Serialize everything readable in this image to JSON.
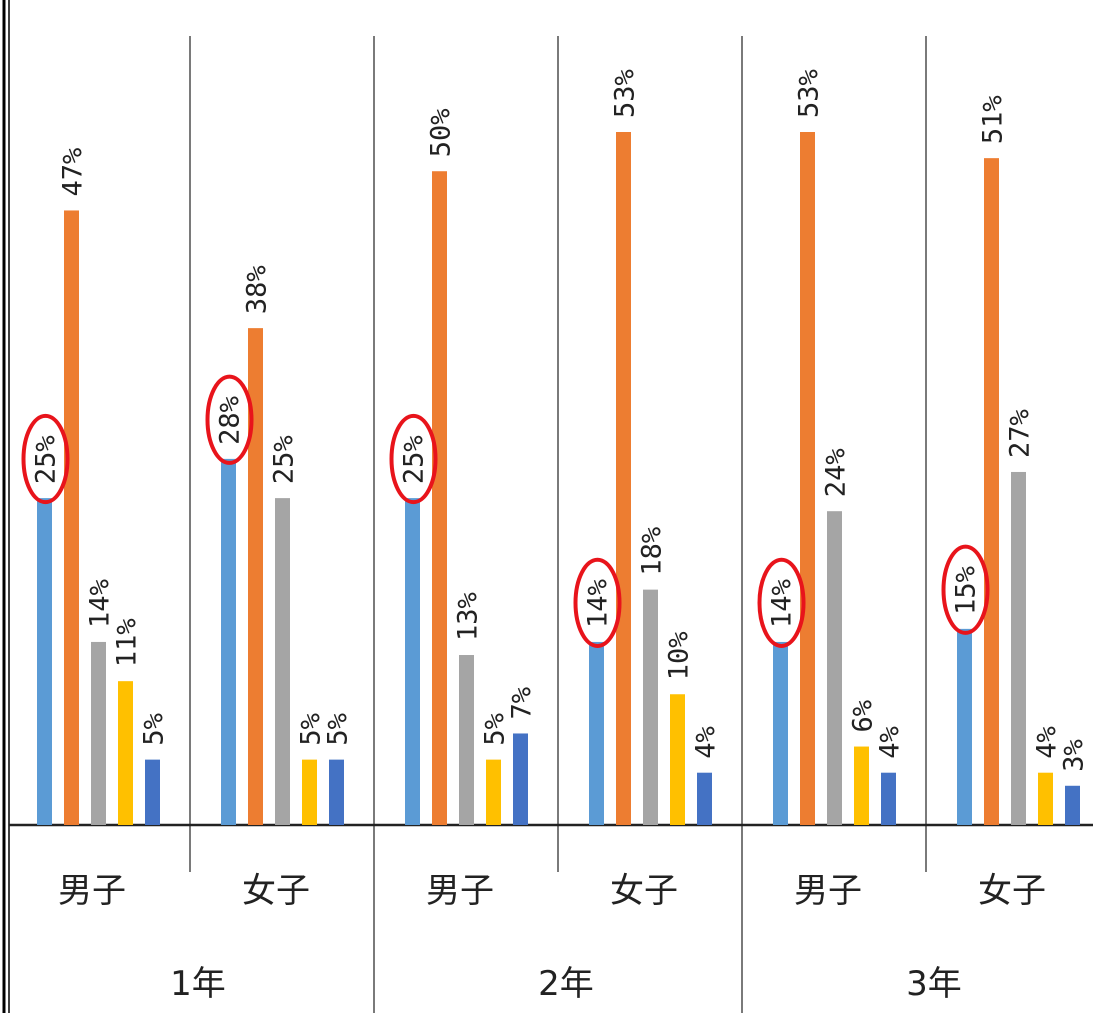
{
  "chart_data": {
    "type": "bar",
    "title": "",
    "xlabel": "",
    "ylabel": "",
    "ylim": [
      0,
      60
    ],
    "grid": false,
    "legend": "none",
    "groups": [
      "1年",
      "2年",
      "3年"
    ],
    "categories": [
      "男子",
      "女子",
      "男子",
      "女子",
      "男子",
      "女子"
    ],
    "category_group_index": [
      0,
      0,
      1,
      1,
      2,
      2
    ],
    "series": [
      {
        "values": [
          25,
          28,
          25,
          14,
          14,
          15
        ],
        "labels": [
          "25%",
          "28%",
          "25%",
          "14%",
          "14%",
          "15%"
        ],
        "color": "#5b9bd5",
        "highlighted": true
      },
      {
        "values": [
          47,
          38,
          50,
          53,
          53,
          51
        ],
        "labels": [
          "47%",
          "38%",
          "50%",
          "53%",
          "53%",
          "51%"
        ],
        "color": "#ed7d31",
        "highlighted": false
      },
      {
        "values": [
          14,
          25,
          13,
          18,
          24,
          27
        ],
        "labels": [
          "14%",
          "25%",
          "13%",
          "18%",
          "24%",
          "27%"
        ],
        "color": "#a5a5a5",
        "highlighted": false
      },
      {
        "values": [
          11,
          5,
          5,
          10,
          6,
          4
        ],
        "labels": [
          "11%",
          "5%",
          "5%",
          "10%",
          "6%",
          "4%"
        ],
        "color": "#ffc000",
        "highlighted": false
      },
      {
        "values": [
          5,
          5,
          7,
          4,
          4,
          3
        ],
        "labels": [
          "5%",
          "5%",
          "7%",
          "4%",
          "4%",
          "3%"
        ],
        "color": "#4472c4",
        "highlighted": false
      }
    ],
    "highlight_color": "#e8141b"
  }
}
